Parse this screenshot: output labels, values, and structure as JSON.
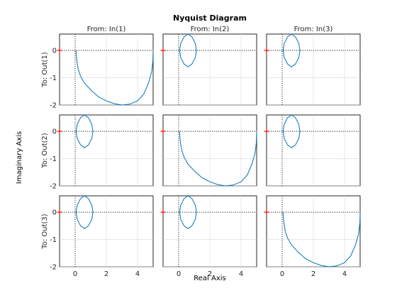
{
  "chart_data": {
    "type": "line",
    "title": "Nyquist Diagram",
    "xlabel": "Real Axis",
    "ylabel": "Imaginary Axis",
    "column_labels": [
      "From: In(1)",
      "From: In(2)",
      "From: In(3)"
    ],
    "row_labels": [
      "To: Out(1)",
      "To: Out(2)",
      "To: Out(3)"
    ],
    "xlim": [
      -1,
      5
    ],
    "ylim": [
      -2,
      0.6
    ],
    "xticks": [
      0,
      2,
      4
    ],
    "xtick_labels": [
      "0",
      "2",
      "4"
    ],
    "yticks": [
      -2,
      -1,
      0
    ],
    "ytick_labels": [
      "-2",
      "-1",
      "0"
    ],
    "grid": true,
    "line_color": "#0072bd",
    "critical_point_color": "#ff0000",
    "critical_point": [
      -1,
      0
    ],
    "curves": {
      "diagonal": {
        "x": [
          0.05,
          0.1,
          0.2,
          0.35,
          0.6,
          1.0,
          1.5,
          2.0,
          2.5,
          3.0,
          3.5,
          4.0,
          4.4,
          4.7,
          4.9,
          4.98,
          5.0
        ],
        "y": [
          0,
          -0.35,
          -0.7,
          -0.95,
          -1.2,
          -1.45,
          -1.7,
          -1.85,
          -1.95,
          -2.0,
          -1.97,
          -1.85,
          -1.6,
          -1.2,
          -0.8,
          -0.4,
          0
        ]
      },
      "off_diagonal_loop": {
        "x": [
          0.6,
          0.85,
          1.07,
          1.14,
          1.07,
          0.85,
          0.6,
          0.35,
          0.13,
          0.06,
          0.13,
          0.35,
          0.6
        ],
        "y": [
          0.6,
          0.5,
          0.26,
          0,
          -0.26,
          -0.5,
          -0.6,
          -0.5,
          -0.26,
          0,
          0.26,
          0.5,
          0.6
        ]
      }
    }
  }
}
